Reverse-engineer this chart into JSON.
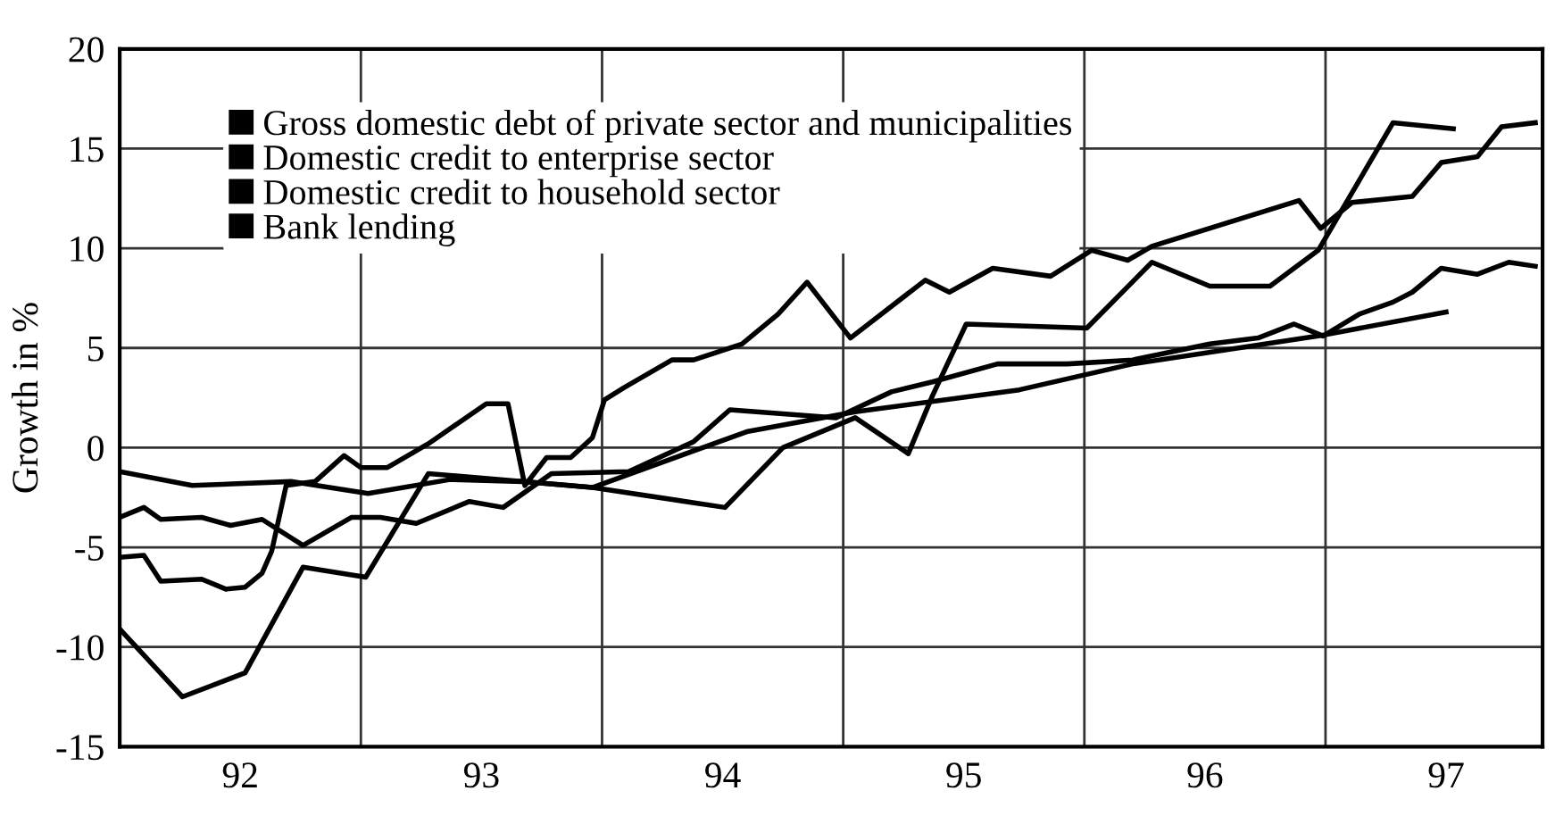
{
  "chart_data": {
    "type": "line",
    "ylabel": "Growth in %",
    "xlim": [
      91.5,
      97.4
    ],
    "ylim": [
      -15,
      20
    ],
    "yticks": [
      -15,
      -10,
      -5,
      0,
      5,
      10,
      15,
      20
    ],
    "xticks": [
      92,
      {
        "value": 92.5,
        "label": null
      },
      93,
      {
        "value": 93.5,
        "label": null
      },
      94,
      {
        "value": 94.5,
        "label": null
      },
      95,
      {
        "value": 95.5,
        "label": null
      },
      96,
      {
        "value": 96.5,
        "label": null
      },
      97
    ],
    "grid": true,
    "legend": "top left",
    "marker": "none",
    "line_style": "solid",
    "series": [
      {
        "name": "Gross domestic debt of private sector and municipalities",
        "color": "#000000",
        "x": [
          91.5,
          91.8,
          92.21,
          92.53,
          92.87,
          93.17,
          93.46,
          94.1,
          94.55,
          95.23,
          95.7,
          96.47,
          97.0
        ],
        "values": [
          -1.2,
          -1.9,
          -1.7,
          -2.3,
          -1.6,
          -1.7,
          -2.0,
          0.8,
          1.8,
          2.9,
          4.2,
          5.6,
          6.8
        ]
      },
      {
        "name": "Domestic credit to enterprise sector",
        "color": "#000000",
        "x": [
          91.5,
          91.6,
          91.67,
          91.84,
          91.94,
          92.02,
          92.09,
          92.13,
          92.19,
          92.31,
          92.43,
          92.5,
          92.61,
          92.78,
          93.02,
          93.11,
          93.18,
          93.27,
          93.37,
          93.46,
          93.51,
          93.59,
          93.79,
          93.88,
          94.08,
          94.23,
          94.35,
          94.53,
          94.84,
          94.94,
          95.12,
          95.36,
          95.53,
          95.68,
          95.78,
          96.39,
          96.48,
          96.61,
          96.86,
          96.98,
          97.13,
          97.23,
          97.37
        ],
        "values": [
          -5.5,
          -5.4,
          -6.7,
          -6.6,
          -7.1,
          -7.0,
          -6.3,
          -5.2,
          -1.9,
          -1.7,
          -0.4,
          -1.0,
          -1.0,
          0.2,
          2.2,
          2.2,
          -1.9,
          -0.5,
          -0.5,
          0.5,
          2.4,
          3.0,
          4.4,
          4.4,
          5.2,
          6.7,
          8.3,
          5.5,
          8.4,
          7.8,
          9.0,
          8.6,
          9.9,
          9.4,
          10.1,
          12.4,
          11.0,
          12.3,
          12.6,
          14.3,
          14.6,
          16.1,
          16.3
        ]
      },
      {
        "name": "Domestic credit to household sector",
        "color": "#000000",
        "x": [
          91.5,
          91.6,
          91.67,
          91.84,
          91.96,
          92.09,
          92.26,
          92.46,
          92.58,
          92.73,
          92.95,
          93.09,
          93.29,
          93.61,
          93.88,
          94.03,
          94.25,
          94.47,
          94.7,
          94.87,
          95.14,
          95.43,
          95.7,
          96.02,
          96.22,
          96.37,
          96.49,
          96.64,
          96.78,
          96.86,
          96.98,
          97.13,
          97.26,
          97.37
        ],
        "values": [
          -3.5,
          -3.0,
          -3.6,
          -3.5,
          -3.9,
          -3.6,
          -4.9,
          -3.5,
          -3.5,
          -3.8,
          -2.7,
          -3.0,
          -1.3,
          -1.2,
          0.3,
          1.9,
          1.7,
          1.5,
          2.8,
          3.3,
          4.2,
          4.2,
          4.4,
          5.2,
          5.5,
          6.2,
          5.6,
          6.7,
          7.3,
          7.8,
          9.0,
          8.7,
          9.3,
          9.1
        ]
      },
      {
        "name": "Bank lending",
        "color": "#000000",
        "x": [
          91.5,
          91.76,
          92.02,
          92.26,
          92.52,
          92.78,
          93.46,
          94.01,
          94.25,
          94.55,
          94.77,
          94.87,
          95.01,
          95.51,
          95.78,
          96.02,
          96.27,
          96.47,
          96.78,
          97.03
        ],
        "values": [
          -9.1,
          -12.5,
          -11.3,
          -6.0,
          -6.5,
          -1.3,
          -2.0,
          -3.0,
          0.0,
          1.5,
          -0.3,
          2.6,
          6.2,
          6.0,
          9.3,
          8.1,
          8.1,
          9.9,
          16.3,
          16.0
        ]
      }
    ]
  }
}
